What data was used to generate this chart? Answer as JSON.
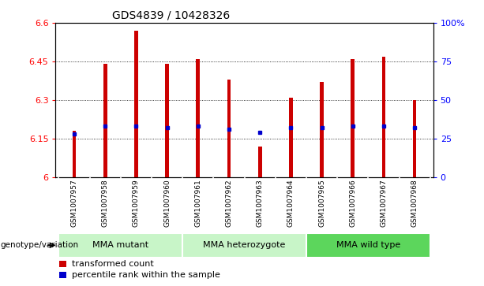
{
  "title": "GDS4839 / 10428326",
  "samples": [
    "GSM1007957",
    "GSM1007958",
    "GSM1007959",
    "GSM1007960",
    "GSM1007961",
    "GSM1007962",
    "GSM1007963",
    "GSM1007964",
    "GSM1007965",
    "GSM1007966",
    "GSM1007967",
    "GSM1007968"
  ],
  "transformed_counts": [
    6.18,
    6.44,
    6.57,
    6.44,
    6.46,
    6.38,
    6.12,
    6.31,
    6.37,
    6.46,
    6.47,
    6.3
  ],
  "percentile_ranks": [
    28,
    33,
    33,
    32,
    33,
    31,
    29,
    32,
    32,
    33,
    33,
    32
  ],
  "ymin": 6.0,
  "ymax": 6.6,
  "y2min": 0,
  "y2max": 100,
  "yticks": [
    6.0,
    6.15,
    6.3,
    6.45,
    6.6
  ],
  "ytick_labels": [
    "6",
    "6.15",
    "6.3",
    "6.45",
    "6.6"
  ],
  "y2ticks": [
    0,
    25,
    50,
    75,
    100
  ],
  "y2ticklabels": [
    "0",
    "25",
    "50",
    "75",
    "100%"
  ],
  "groups": [
    {
      "label": "MMA mutant",
      "start": 0,
      "end": 4,
      "color": "#c8f5c8"
    },
    {
      "label": "MMA heterozygote",
      "start": 4,
      "end": 8,
      "color": "#c8f5c8"
    },
    {
      "label": "MMA wild type",
      "start": 8,
      "end": 12,
      "color": "#5cd65c"
    }
  ],
  "bar_color": "#CC0000",
  "dot_color": "#0000CC",
  "label_bg_color": "#C8C8C8",
  "label_divider_color": "#FFFFFF",
  "plot_bg": "#FFFFFF",
  "left_label": "genotype/variation",
  "legend_items": [
    {
      "label": "transformed count",
      "color": "#CC0000"
    },
    {
      "label": "percentile rank within the sample",
      "color": "#0000CC"
    }
  ],
  "bar_width": 0.12
}
